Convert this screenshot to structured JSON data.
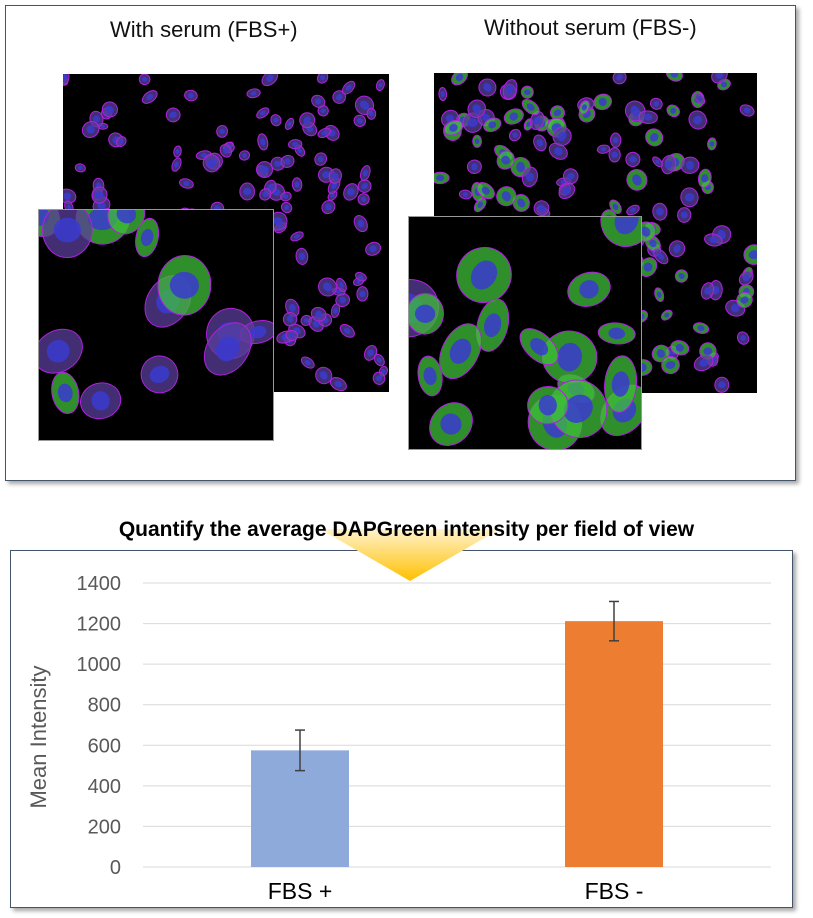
{
  "top_panel": {
    "left_label": "With serum (FBS+)",
    "right_label": "Without serum (FBS-)"
  },
  "colors": {
    "fbs_plus_bar": "#8eaadb",
    "fbs_minus_bar": "#ed7d31",
    "arrow_top": "#fff2cc",
    "arrow_bottom": "#ffc000",
    "panel_border": "#44546a",
    "cell_outline": "#b020e0",
    "nucleus": "#3a3ad0",
    "cytoplasm_green": "#3fbf3a"
  },
  "chart_data": {
    "type": "bar",
    "title": "Quantify the average DAPGreen intensity per field of view",
    "categories": [
      "FBS +",
      "FBS -"
    ],
    "values": [
      575,
      1212
    ],
    "errors": [
      100,
      97
    ],
    "ylabel": "Mean Intensity",
    "xlabel": "",
    "ylim": [
      0,
      1400
    ],
    "yticks": [
      0,
      200,
      400,
      600,
      800,
      1000,
      1200,
      1400
    ],
    "grid": true,
    "legend": "none"
  }
}
